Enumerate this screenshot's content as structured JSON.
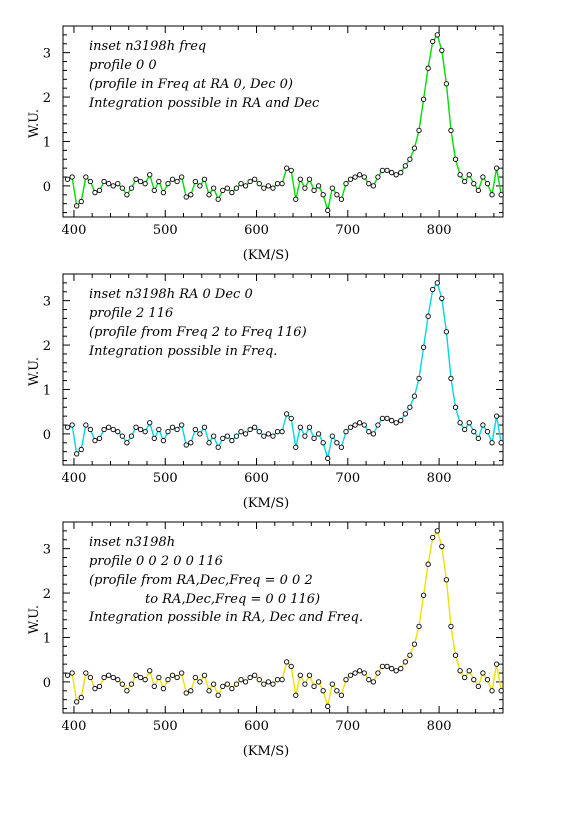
{
  "figure": {
    "xlabel": "(KM/S)",
    "ylabel": "W.U."
  },
  "chart_data": [
    {
      "type": "line",
      "x": [
        393,
        398,
        403,
        408,
        413,
        418,
        423,
        428,
        433,
        438,
        443,
        448,
        453,
        458,
        463,
        468,
        473,
        478,
        483,
        488,
        493,
        498,
        503,
        508,
        513,
        518,
        523,
        528,
        533,
        538,
        543,
        548,
        553,
        558,
        563,
        568,
        573,
        578,
        583,
        588,
        593,
        598,
        603,
        608,
        613,
        618,
        623,
        628,
        633,
        638,
        643,
        648,
        653,
        658,
        663,
        668,
        673,
        678,
        683,
        688,
        693,
        698,
        703,
        708,
        713,
        718,
        723,
        728,
        733,
        738,
        743,
        748,
        753,
        758,
        763,
        768,
        773,
        778,
        783,
        788,
        793,
        798,
        803,
        808,
        813,
        818,
        823,
        828,
        833,
        838,
        843,
        848,
        853,
        858,
        863,
        868
      ],
      "series": [
        {
          "color": "#00dd00",
          "values": [
            0.15,
            0.2,
            -0.45,
            -0.35,
            0.2,
            0.1,
            -0.15,
            -0.1,
            0.1,
            0.05,
            0.0,
            0.05,
            -0.05,
            -0.2,
            -0.05,
            0.15,
            0.1,
            0.05,
            0.25,
            -0.1,
            0.1,
            -0.15,
            0.05,
            0.15,
            0.1,
            0.2,
            -0.25,
            -0.2,
            0.1,
            0.0,
            0.15,
            -0.2,
            -0.05,
            -0.3,
            -0.1,
            -0.05,
            -0.15,
            -0.05,
            0.05,
            0.0,
            0.1,
            0.15,
            0.05,
            -0.05,
            0.0,
            -0.05,
            0.05,
            0.05,
            0.4,
            0.35,
            -0.3,
            0.15,
            -0.05,
            0.15,
            -0.1,
            0.0,
            -0.2,
            -0.55,
            -0.05,
            -0.2,
            -0.3,
            0.05,
            0.15,
            0.2,
            0.25,
            0.2,
            0.05,
            0.0,
            0.2,
            0.35,
            0.35,
            0.3,
            0.25,
            0.3,
            0.45,
            0.6,
            0.85,
            1.25,
            1.95,
            2.65,
            3.25,
            3.4,
            3.05,
            2.3,
            1.25,
            0.6,
            0.25,
            0.1,
            0.25,
            0.05,
            -0.1,
            0.2,
            0.05,
            -0.2,
            0.4,
            -0.2
          ]
        }
      ],
      "xlim": [
        388,
        870
      ],
      "ylim": [
        -0.7,
        3.6
      ],
      "x_ticks": [
        400,
        500,
        600,
        700,
        800
      ],
      "y_ticks": [
        0,
        1,
        2,
        3
      ],
      "xlabel": "(KM/S)",
      "ylabel": "W.U.",
      "annotations": [
        "inset n3198h freq",
        "profile 0 0",
        "(profile in Freq at RA 0, Dec 0)",
        "Integration possible in RA and Dec"
      ],
      "grid": false
    },
    {
      "type": "line",
      "x": [
        393,
        398,
        403,
        408,
        413,
        418,
        423,
        428,
        433,
        438,
        443,
        448,
        453,
        458,
        463,
        468,
        473,
        478,
        483,
        488,
        493,
        498,
        503,
        508,
        513,
        518,
        523,
        528,
        533,
        538,
        543,
        548,
        553,
        558,
        563,
        568,
        573,
        578,
        583,
        588,
        593,
        598,
        603,
        608,
        613,
        618,
        623,
        628,
        633,
        638,
        643,
        648,
        653,
        658,
        663,
        668,
        673,
        678,
        683,
        688,
        693,
        698,
        703,
        708,
        713,
        718,
        723,
        728,
        733,
        738,
        743,
        748,
        753,
        758,
        763,
        768,
        773,
        778,
        783,
        788,
        793,
        798,
        803,
        808,
        813,
        818,
        823,
        828,
        833,
        838,
        843,
        848,
        853,
        858,
        863,
        868
      ],
      "series": [
        {
          "color": "#00d8e0",
          "values": [
            0.15,
            0.2,
            -0.45,
            -0.35,
            0.2,
            0.1,
            -0.15,
            -0.1,
            0.1,
            0.15,
            0.1,
            0.05,
            -0.05,
            -0.2,
            -0.05,
            0.15,
            0.1,
            0.05,
            0.25,
            -0.1,
            0.1,
            -0.15,
            0.05,
            0.15,
            0.1,
            0.2,
            -0.25,
            -0.2,
            0.1,
            0.0,
            0.15,
            -0.2,
            -0.05,
            -0.3,
            -0.1,
            -0.05,
            -0.15,
            -0.05,
            0.05,
            0.0,
            0.1,
            0.15,
            0.05,
            -0.05,
            0.0,
            -0.05,
            0.05,
            0.05,
            0.45,
            0.35,
            -0.3,
            0.15,
            -0.05,
            0.15,
            -0.1,
            0.0,
            -0.2,
            -0.55,
            -0.05,
            -0.2,
            -0.3,
            0.05,
            0.15,
            0.2,
            0.25,
            0.2,
            0.05,
            0.0,
            0.2,
            0.35,
            0.35,
            0.3,
            0.25,
            0.3,
            0.45,
            0.6,
            0.85,
            1.25,
            1.95,
            2.65,
            3.25,
            3.4,
            3.05,
            2.3,
            1.25,
            0.6,
            0.25,
            0.1,
            0.25,
            0.05,
            -0.1,
            0.2,
            0.05,
            -0.2,
            0.4,
            -0.2
          ]
        }
      ],
      "xlim": [
        388,
        870
      ],
      "ylim": [
        -0.7,
        3.6
      ],
      "x_ticks": [
        400,
        500,
        600,
        700,
        800
      ],
      "y_ticks": [
        0,
        1,
        2,
        3
      ],
      "xlabel": "(KM/S)",
      "ylabel": "W.U.",
      "annotations": [
        "inset n3198h RA 0 Dec 0",
        "profile 2 116",
        "(profile from Freq 2 to Freq 116)",
        "Integration possible in Freq."
      ],
      "grid": false
    },
    {
      "type": "line",
      "x": [
        393,
        398,
        403,
        408,
        413,
        418,
        423,
        428,
        433,
        438,
        443,
        448,
        453,
        458,
        463,
        468,
        473,
        478,
        483,
        488,
        493,
        498,
        503,
        508,
        513,
        518,
        523,
        528,
        533,
        538,
        543,
        548,
        553,
        558,
        563,
        568,
        573,
        578,
        583,
        588,
        593,
        598,
        603,
        608,
        613,
        618,
        623,
        628,
        633,
        638,
        643,
        648,
        653,
        658,
        663,
        668,
        673,
        678,
        683,
        688,
        693,
        698,
        703,
        708,
        713,
        718,
        723,
        728,
        733,
        738,
        743,
        748,
        753,
        758,
        763,
        768,
        773,
        778,
        783,
        788,
        793,
        798,
        803,
        808,
        813,
        818,
        823,
        828,
        833,
        838,
        843,
        848,
        853,
        858,
        863,
        868
      ],
      "series": [
        {
          "color": "#f0e000",
          "values": [
            0.15,
            0.2,
            -0.45,
            -0.35,
            0.2,
            0.1,
            -0.15,
            -0.1,
            0.1,
            0.15,
            0.1,
            0.05,
            -0.05,
            -0.2,
            -0.05,
            0.15,
            0.1,
            0.05,
            0.25,
            -0.1,
            0.1,
            -0.15,
            0.05,
            0.15,
            0.1,
            0.2,
            -0.25,
            -0.2,
            0.1,
            0.0,
            0.15,
            -0.2,
            -0.05,
            -0.3,
            -0.1,
            -0.05,
            -0.15,
            -0.05,
            0.05,
            0.0,
            0.1,
            0.15,
            0.05,
            -0.05,
            0.0,
            -0.05,
            0.05,
            0.05,
            0.45,
            0.35,
            -0.3,
            0.15,
            -0.05,
            0.15,
            -0.1,
            0.0,
            -0.2,
            -0.55,
            -0.05,
            -0.2,
            -0.3,
            0.05,
            0.15,
            0.2,
            0.25,
            0.2,
            0.05,
            0.0,
            0.2,
            0.35,
            0.35,
            0.3,
            0.25,
            0.3,
            0.45,
            0.6,
            0.85,
            1.25,
            1.95,
            2.65,
            3.25,
            3.4,
            3.05,
            2.3,
            1.25,
            0.6,
            0.25,
            0.1,
            0.25,
            0.05,
            -0.1,
            0.2,
            0.05,
            -0.2,
            0.4,
            -0.2
          ]
        }
      ],
      "xlim": [
        388,
        870
      ],
      "ylim": [
        -0.7,
        3.6
      ],
      "x_ticks": [
        400,
        500,
        600,
        700,
        800
      ],
      "y_ticks": [
        0,
        1,
        2,
        3
      ],
      "xlabel": "(KM/S)",
      "ylabel": "W.U.",
      "annotations": [
        "inset n3198h",
        "profile 0 0 2 0 0 116",
        "(profile from RA,Dec,Freq = 0 0 2",
        "to    RA,Dec,Freq = 0 0 116)",
        "Integration possible in RA, Dec and Freq."
      ],
      "grid": false
    }
  ]
}
